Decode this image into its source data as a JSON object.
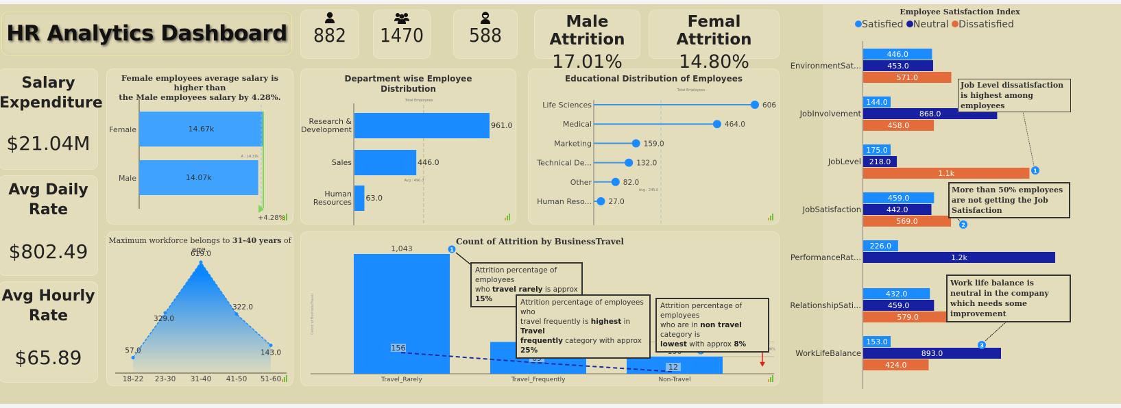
{
  "header": {
    "title": "HR Analytics Dashboard",
    "kpis": [
      {
        "icon": "male-user-icon",
        "value": "882"
      },
      {
        "icon": "group-users-icon",
        "value": "1470"
      },
      {
        "icon": "female-user-icon",
        "value": "588"
      }
    ],
    "attrition": [
      {
        "label": "Male Attrition",
        "value": "17.01%"
      },
      {
        "label": "Femal Attrition",
        "value": "14.80%"
      }
    ]
  },
  "side_kpis": [
    {
      "label_line1": "Salary",
      "label_line2": "Expenditure",
      "value": "$21.04M"
    },
    {
      "label_line1": "Avg Daily",
      "label_line2": "Rate",
      "value": "$802.49"
    },
    {
      "label_line1": "Avg Hourly",
      "label_line2": "Rate",
      "value": "$65.89"
    }
  ],
  "colors": {
    "bar_blue": "#1a8cff",
    "salary_blue": "#3fa2ff",
    "satisfied": "#1a8cff",
    "neutral": "#1620a0",
    "dissatisfied": "#e46c3a",
    "annotation_badge": "#1a8cff",
    "variance_green": "#7ed957",
    "variance_red": "#e0231b"
  },
  "chart_data": [
    {
      "id": "salary",
      "type": "bar",
      "orientation": "horizontal",
      "title_line1": "Female employees average salary is higher than",
      "title_line2": "the Male employees salary by 4.28%.",
      "categories": [
        "Female",
        "Male"
      ],
      "values": [
        14670,
        14070
      ],
      "value_labels": [
        "14.67k",
        "14.07k"
      ],
      "average_label": "A : 14.37k",
      "average": 14370,
      "variance_label": "+4.28%"
    },
    {
      "id": "department",
      "type": "bar",
      "orientation": "horizontal",
      "title_line1": "Department wise Employee",
      "title_line2": "Distribution",
      "subtitle": "Total Employees",
      "categories": [
        [
          "Research &",
          "Development"
        ],
        [
          "Sales"
        ],
        [
          "Human",
          "Resources"
        ]
      ],
      "values": [
        961,
        446,
        63
      ],
      "value_labels": [
        "961.0",
        "446.0",
        "63.0"
      ],
      "average": 490,
      "average_label": "Avg : 490.0"
    },
    {
      "id": "education",
      "type": "bar",
      "subtype": "lollipop",
      "orientation": "horizontal",
      "title": "Educational Distribution of Employees",
      "subtitle": "Total Employees",
      "categories": [
        "Life Sciences",
        "Medical",
        "Marketing",
        "Technical De...",
        "Other",
        "Human Reso..."
      ],
      "values": [
        606,
        464,
        159,
        132,
        82,
        27
      ],
      "value_labels": [
        "606",
        "464.0",
        "159.0",
        "132.0",
        "82.0",
        "27.0"
      ],
      "average": 245,
      "average_label": "Avg : 245.0"
    },
    {
      "id": "age",
      "type": "area",
      "title_prefix": "Maximum workforce belongs to ",
      "title_bold": "31-40 years",
      "title_suffix": " of age.",
      "categories": [
        "18-22",
        "23-30",
        "31-40",
        "41-50",
        "51-60"
      ],
      "values": [
        57,
        329,
        619,
        322,
        143
      ],
      "value_labels": [
        "57.0",
        "329.0",
        "619.0",
        "322.0",
        "143.0"
      ]
    },
    {
      "id": "travel",
      "type": "bar",
      "title": "Count of Attrition by BusinessTravel",
      "ylabel": "Count of BusinessTravel",
      "categories": [
        "Travel_Rarely",
        "Travel_Frequently",
        "Non-Travel"
      ],
      "values": [
        1043,
        277,
        150
      ],
      "value_labels": [
        "1,043",
        "277",
        "150"
      ],
      "line_series": {
        "name": "Attrition",
        "values": [
          156,
          69,
          12
        ],
        "value_labels": [
          "156",
          "69",
          "12"
        ]
      },
      "variance_label": "-86%",
      "annotations": [
        {
          "badge": "1",
          "html_parts": [
            [
              "Attrition percentage of employees",
              false
            ],
            [
              "who ",
              false
            ],
            [
              "travel rarely",
              true
            ],
            [
              " is approx ",
              false
            ],
            [
              "15%",
              true
            ]
          ]
        },
        {
          "badge": "2",
          "html_parts": [
            [
              "Attrition percentage of employees who",
              false
            ],
            [
              "travel frequently is ",
              false
            ],
            [
              "highest",
              true
            ],
            [
              " in ",
              false
            ],
            [
              "Travel",
              true
            ],
            [
              "frequently",
              true
            ],
            [
              " category with approx ",
              false
            ],
            [
              "25%",
              true
            ]
          ]
        },
        {
          "badge": "3",
          "html_parts": [
            [
              "Attrition percentage of employees",
              false
            ],
            [
              "who are in ",
              false
            ],
            [
              "non travel",
              true
            ],
            [
              " category is",
              false
            ],
            [
              "lowest",
              true
            ],
            [
              " with approx ",
              false
            ],
            [
              "8%",
              true
            ]
          ]
        }
      ]
    },
    {
      "id": "satisfaction",
      "type": "bar",
      "orientation": "horizontal",
      "title": "Employee Satisfaction Index",
      "legend": [
        "Satisfied",
        "Neutral",
        "Dissatisfied"
      ],
      "legend_position": "top",
      "categories": [
        "EnvironmentSat...",
        "JobInvolvement",
        "JobLevel",
        "JobSatisfaction",
        "PerformanceRat...",
        "RelationshipSati...",
        "WorkLifeBalance"
      ],
      "series": [
        {
          "name": "Satisfied",
          "values": [
            446,
            144,
            175,
            459,
            226,
            432,
            153
          ],
          "labels": [
            "446.0",
            "144.0",
            "175.0",
            "459.0",
            "226.0",
            "432.0",
            "153.0"
          ]
        },
        {
          "name": "Neutral",
          "values": [
            453,
            868,
            218,
            442,
            1244,
            459,
            893
          ],
          "labels": [
            "453.0",
            "868.0",
            "218.0",
            "442.0",
            "1.2k",
            "459.0",
            "893.0"
          ]
        },
        {
          "name": "Dissatisfied",
          "values": [
            571,
            458,
            1077,
            569,
            0,
            579,
            424
          ],
          "labels": [
            "571.0",
            "458.0",
            "1.1k",
            "569.0",
            "",
            "579.0",
            "424.0"
          ]
        }
      ],
      "annotations": [
        {
          "badge": "1",
          "text": "Job Level dissatisfaction is highest among employees"
        },
        {
          "badge": "2",
          "text": "More than 50% employees are not getting the Job Satisfaction"
        },
        {
          "badge": "3",
          "text": "Work life balance is neutral in the company which needs some improvement"
        }
      ]
    }
  ]
}
